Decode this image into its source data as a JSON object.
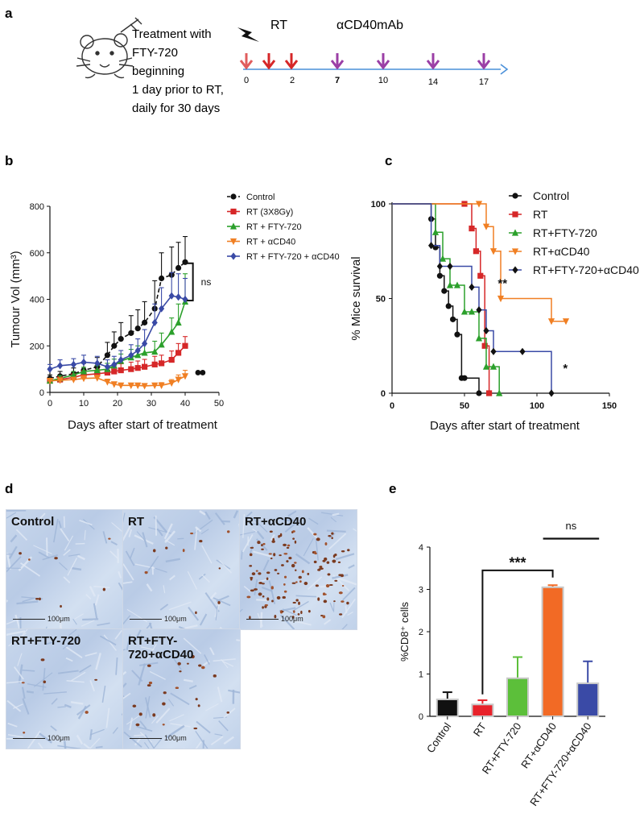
{
  "panels": {
    "a": "a",
    "b": "b",
    "c": "c",
    "d": "d",
    "e": "e"
  },
  "panel_a": {
    "treatment_lines": [
      "Treatment with",
      "FTY-720",
      "beginning",
      "1 day prior to RT,",
      "daily for 30 days"
    ],
    "rt_label": "RT",
    "antibody_label": "αCD40mAb",
    "day_ticks": [
      "0",
      "2",
      "7",
      "10",
      "14",
      "17"
    ],
    "colors": {
      "rt_arrow": "#d62728",
      "mab_arrow": "#9b3fa6",
      "timeline": "#4a90d9"
    }
  },
  "panel_d": {
    "tiles": [
      {
        "label": "Control",
        "scale": "100μm",
        "density": 8
      },
      {
        "label": "RT",
        "scale": "100μm",
        "density": 10
      },
      {
        "label": "RT+αCD40",
        "scale": "100μm",
        "density": 120
      },
      {
        "label": "RT+FTY-720",
        "scale": "100μm",
        "density": 6
      },
      {
        "label": "RT+FTY-720+αCD40",
        "scale": "100μm",
        "density": 22
      }
    ]
  },
  "chart_data": [
    {
      "panel": "b",
      "type": "line",
      "title": "",
      "xlabel": "Days after start of treatment",
      "ylabel": "Tumour Vol (mm³)",
      "xlim": [
        0,
        50
      ],
      "ylim": [
        0,
        800
      ],
      "xticks": [
        "0",
        "10",
        "20",
        "30",
        "40",
        "50"
      ],
      "yticks": [
        "0",
        "200",
        "400",
        "600",
        "800"
      ],
      "annotation": "ns",
      "series": [
        {
          "name": "Control",
          "color": "#111111",
          "dashed": true,
          "marker": "circle",
          "x": [
            0,
            3,
            7,
            10,
            14,
            17,
            19,
            21,
            24,
            26,
            28,
            31,
            33,
            36,
            38,
            40
          ],
          "y": [
            60,
            70,
            80,
            95,
            110,
            160,
            200,
            230,
            255,
            275,
            300,
            360,
            490,
            505,
            535,
            560
          ],
          "err": [
            15,
            20,
            25,
            30,
            40,
            55,
            60,
            70,
            75,
            80,
            90,
            120,
            110,
            120,
            110,
            110
          ]
        },
        {
          "name": "RT (3X8Gy)",
          "color": "#d62728",
          "dashed": false,
          "marker": "square",
          "x": [
            0,
            3,
            7,
            10,
            14,
            17,
            19,
            21,
            24,
            26,
            28,
            31,
            33,
            36,
            38,
            40
          ],
          "y": [
            50,
            55,
            65,
            75,
            80,
            85,
            90,
            95,
            100,
            105,
            110,
            120,
            125,
            140,
            170,
            200
          ],
          "err": [
            10,
            12,
            15,
            18,
            20,
            25,
            25,
            28,
            30,
            30,
            32,
            35,
            35,
            38,
            40,
            40
          ]
        },
        {
          "name": "RT + FTY-720",
          "color": "#2ca02c",
          "dashed": false,
          "marker": "triangle",
          "x": [
            0,
            3,
            7,
            10,
            14,
            17,
            19,
            21,
            24,
            26,
            28,
            31,
            33,
            36,
            38,
            40
          ],
          "y": [
            50,
            60,
            75,
            90,
            95,
            100,
            115,
            135,
            150,
            160,
            170,
            175,
            205,
            260,
            300,
            390
          ],
          "err": [
            10,
            12,
            15,
            18,
            20,
            25,
            28,
            30,
            35,
            40,
            40,
            45,
            50,
            60,
            80,
            120
          ]
        },
        {
          "name": "RT + αCD40",
          "color": "#f07f23",
          "dashed": false,
          "marker": "triangle-down",
          "x": [
            0,
            3,
            7,
            10,
            14,
            17,
            19,
            21,
            24,
            26,
            28,
            31,
            33,
            36,
            38,
            40
          ],
          "y": [
            50,
            52,
            55,
            60,
            62,
            45,
            35,
            30,
            30,
            30,
            28,
            30,
            30,
            40,
            55,
            70
          ],
          "err": [
            8,
            8,
            10,
            12,
            12,
            12,
            10,
            10,
            10,
            10,
            10,
            10,
            12,
            15,
            20,
            25
          ]
        },
        {
          "name": "RT + FTY-720 + αCD40",
          "color": "#3a4aa6",
          "dashed": false,
          "marker": "diamond",
          "x": [
            0,
            3,
            7,
            10,
            14,
            17,
            19,
            21,
            24,
            26,
            28,
            31,
            33,
            36,
            38,
            40
          ],
          "y": [
            100,
            115,
            120,
            130,
            125,
            110,
            120,
            140,
            160,
            180,
            210,
            300,
            360,
            415,
            410,
            400
          ],
          "err": [
            20,
            25,
            25,
            30,
            30,
            30,
            35,
            40,
            45,
            50,
            60,
            80,
            90,
            100,
            100,
            90
          ]
        }
      ]
    },
    {
      "panel": "c",
      "type": "line",
      "subtype": "kaplan-meier",
      "title": "",
      "xlabel": "Days after start of treatment",
      "ylabel": "% Mice survival",
      "xlim": [
        0,
        150
      ],
      "ylim": [
        0,
        100
      ],
      "xticks": [
        "0",
        "50",
        "100",
        "150"
      ],
      "yticks": [
        "0",
        "50",
        "100"
      ],
      "annotations": [
        {
          "text": "**",
          "x": 73,
          "y": 56
        },
        {
          "text": "*",
          "x": 118,
          "y": 11
        }
      ],
      "series": [
        {
          "name": "Control",
          "color": "#111111",
          "marker": "circle",
          "x": [
            0,
            27,
            30,
            33,
            36,
            39,
            42,
            45,
            48,
            50,
            60
          ],
          "y": [
            100,
            92,
            77,
            62,
            54,
            46,
            39,
            31,
            8,
            8,
            0
          ]
        },
        {
          "name": "RT",
          "color": "#d62728",
          "marker": "square",
          "x": [
            0,
            50,
            55,
            58,
            61,
            64,
            67
          ],
          "y": [
            100,
            100,
            87,
            75,
            62,
            25,
            0
          ]
        },
        {
          "name": "RT+FTY-720",
          "color": "#2ca02c",
          "marker": "triangle",
          "x": [
            0,
            30,
            35,
            40,
            45,
            50,
            55,
            60,
            65,
            70,
            74
          ],
          "y": [
            100,
            85,
            71,
            57,
            57,
            43,
            43,
            29,
            14,
            14,
            0
          ]
        },
        {
          "name": "RT+αCD40",
          "color": "#f07f23",
          "marker": "triangle-down",
          "x": [
            0,
            60,
            65,
            70,
            75,
            110,
            120
          ],
          "y": [
            100,
            100,
            88,
            75,
            50,
            38,
            38
          ]
        },
        {
          "name": "RT+FTY-720+αCD40",
          "color": "#111111",
          "line_color": "#3a4aa6",
          "marker": "diamond",
          "x": [
            0,
            27,
            33,
            40,
            55,
            60,
            65,
            70,
            90,
            110
          ],
          "y": [
            100,
            78,
            67,
            67,
            56,
            44,
            33,
            22,
            22,
            0
          ]
        }
      ]
    },
    {
      "panel": "e",
      "type": "bar",
      "title": "",
      "xlabel": "",
      "ylabel": "%CD8⁺ cells",
      "ylim": [
        0,
        4
      ],
      "yticks": [
        "0",
        "1",
        "2",
        "3",
        "4"
      ],
      "categories": [
        "Control",
        "RT",
        "RT+FTY-720",
        "RT+αCD40",
        "RT+FTY-720+αCD40"
      ],
      "values": [
        0.4,
        0.28,
        0.9,
        3.05,
        0.78
      ],
      "errors": [
        0.17,
        0.1,
        0.5,
        0.05,
        0.52
      ],
      "colors": [
        "#111111",
        "#e8222a",
        "#5cbf3a",
        "#f26a25",
        "#3a4aa6"
      ],
      "significance": [
        {
          "from": "RT",
          "to": "RT+αCD40",
          "label": "***"
        },
        {
          "from": "RT+αCD40",
          "to": "RT+FTY-720+αCD40",
          "label": "ns"
        }
      ]
    }
  ]
}
